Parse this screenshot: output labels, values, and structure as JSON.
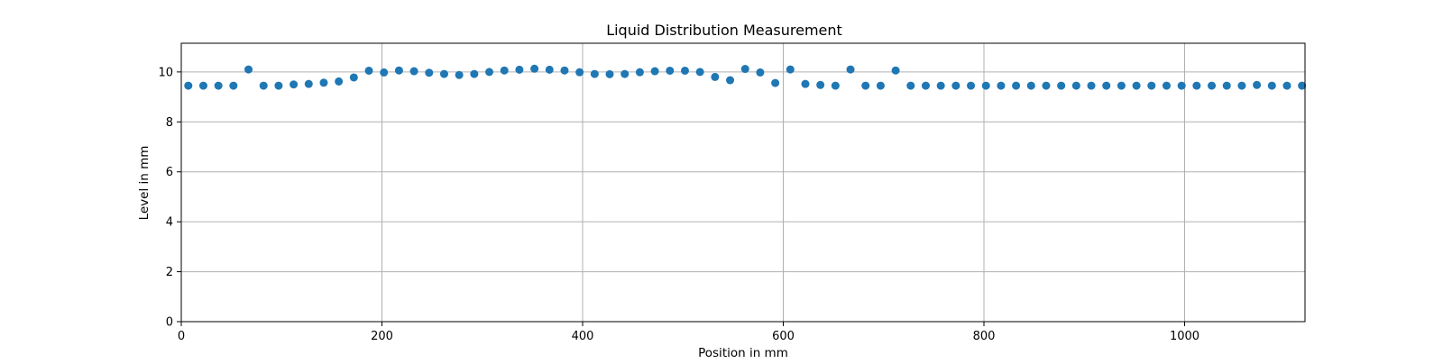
{
  "chart_data": {
    "type": "scatter",
    "title": "Liquid Distribution Measurement",
    "xlabel": "Position in mm",
    "ylabel": "Level in mm",
    "xlim": [
      0,
      1120
    ],
    "ylim": [
      0,
      11.15
    ],
    "xticks": [
      0,
      200,
      400,
      600,
      800,
      1000
    ],
    "yticks": [
      0,
      2,
      4,
      6,
      8,
      10
    ],
    "grid": true,
    "marker_color": "#1f77b4",
    "series": [
      {
        "x": [
          7,
          22,
          37,
          52,
          67,
          82,
          97,
          112,
          127,
          142,
          157,
          172,
          187,
          202,
          217,
          232,
          247,
          262,
          277,
          292,
          307,
          322,
          337,
          352,
          367,
          382,
          397,
          412,
          427,
          442,
          457,
          472,
          487,
          502,
          517,
          532,
          547,
          562,
          577,
          592,
          607,
          622,
          637,
          652,
          667,
          682,
          697,
          712,
          727,
          742,
          757,
          772,
          787,
          802,
          817,
          832,
          847,
          862,
          877,
          892,
          907,
          922,
          937,
          952,
          967,
          982,
          997,
          1012,
          1027,
          1042,
          1057,
          1072,
          1087,
          1102,
          1117
        ],
        "y": [
          9.45,
          9.45,
          9.45,
          9.45,
          10.1,
          9.45,
          9.45,
          9.5,
          9.52,
          9.57,
          9.62,
          9.78,
          10.05,
          9.98,
          10.06,
          10.03,
          9.97,
          9.92,
          9.88,
          9.92,
          10.0,
          10.06,
          10.09,
          10.13,
          10.09,
          10.06,
          9.99,
          9.92,
          9.91,
          9.92,
          9.99,
          10.03,
          10.05,
          10.05,
          10.0,
          9.8,
          9.67,
          10.12,
          9.98,
          9.56,
          10.1,
          9.52,
          9.48,
          9.45,
          10.1,
          9.45,
          9.45,
          10.06,
          9.45,
          9.45,
          9.45,
          9.45,
          9.45,
          9.45,
          9.45,
          9.45,
          9.45,
          9.45,
          9.45,
          9.45,
          9.45,
          9.45,
          9.45,
          9.45,
          9.45,
          9.45,
          9.45,
          9.45,
          9.45,
          9.45,
          9.45,
          9.48,
          9.45,
          9.45,
          9.45
        ]
      }
    ]
  }
}
